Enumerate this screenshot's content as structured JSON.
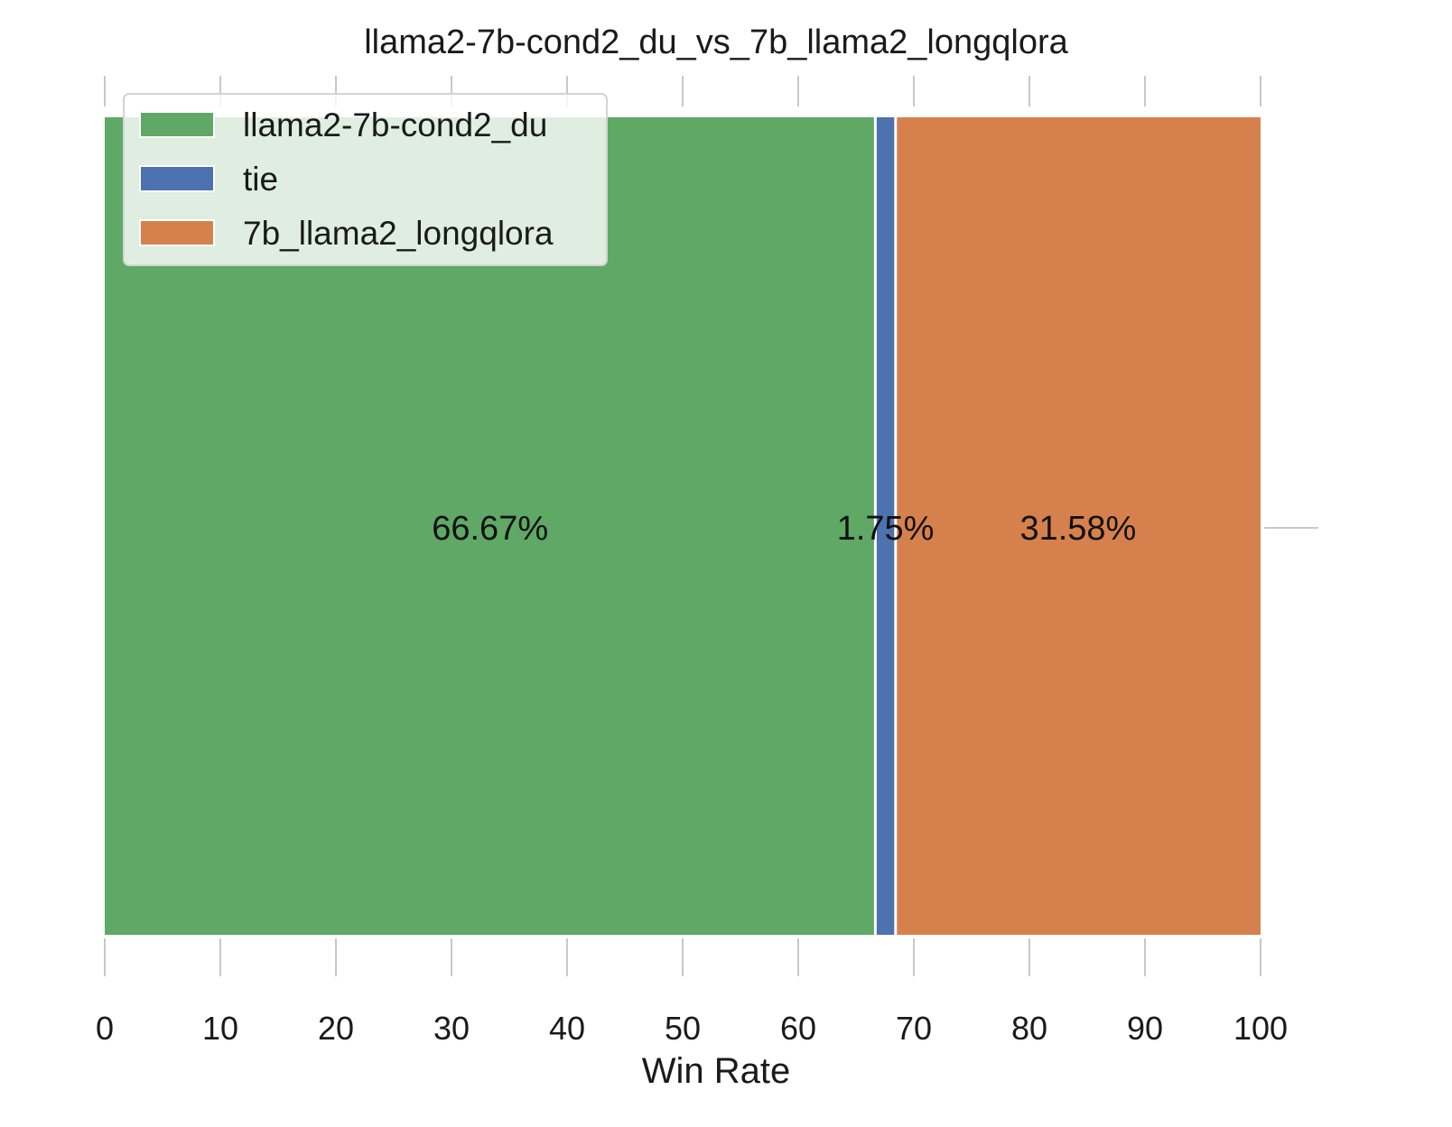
{
  "chart_data": {
    "type": "bar",
    "orientation": "horizontal",
    "stacked": true,
    "title": "llama2-7b-cond2_du_vs_7b_llama2_longqlora",
    "xlabel": "Win Rate",
    "ylabel": "",
    "xlim": [
      0,
      100
    ],
    "xticks": [
      "0",
      "10",
      "20",
      "30",
      "40",
      "50",
      "60",
      "70",
      "80",
      "90",
      "100"
    ],
    "grid": true,
    "legend_position": "top-left",
    "series": [
      {
        "name": "llama2-7b-cond2_du",
        "value": 66.67,
        "label": "66.67%",
        "color": "#5fa866"
      },
      {
        "name": "tie",
        "value": 1.75,
        "label": "1.75%",
        "color": "#4c72b0"
      },
      {
        "name": "7b_llama2_longqlora",
        "value": 31.58,
        "label": "31.58%",
        "color": "#d6814d"
      }
    ]
  }
}
